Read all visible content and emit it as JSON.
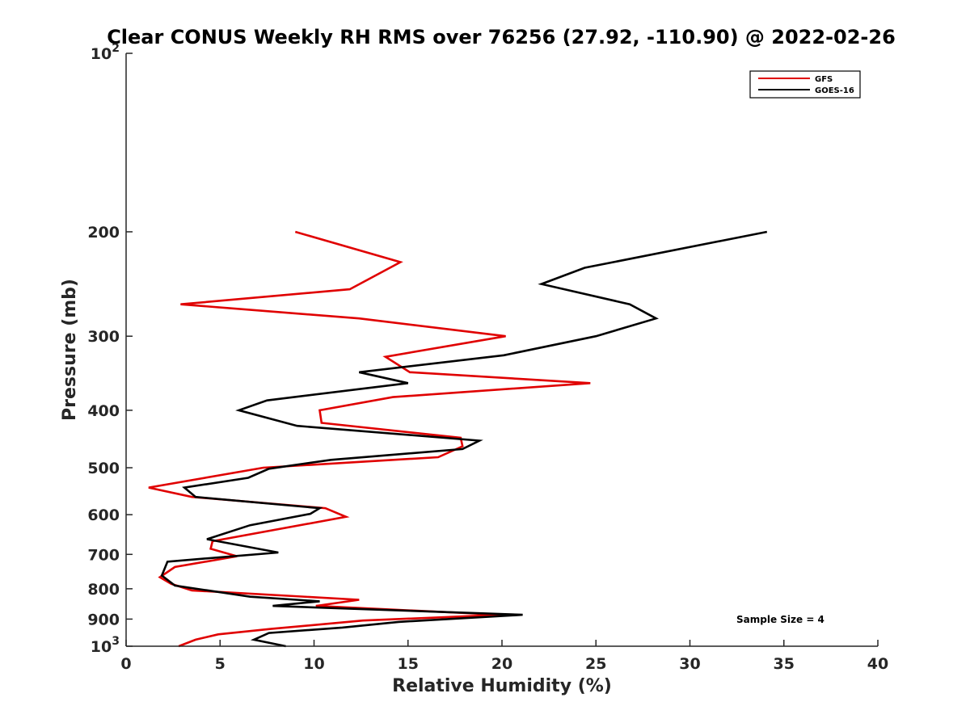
{
  "chart_data": {
    "type": "line",
    "title": "Clear CONUS Weekly RH RMS over 76256 (27.92, -110.90) @ 2022-02-26",
    "xlabel": "Relative Humidity (%)",
    "ylabel": "Pressure (mb)",
    "xlim": [
      0,
      40
    ],
    "ylim": [
      100,
      1000
    ],
    "yscale": "log",
    "yreversed": true,
    "xticks": [
      0,
      5,
      10,
      15,
      20,
      25,
      30,
      35,
      40
    ],
    "xtick_labels": [
      "0",
      "5",
      "10",
      "15",
      "20",
      "25",
      "30",
      "35",
      "40"
    ],
    "yticks": [
      {
        "value": 100,
        "base": "10",
        "exp": "2"
      },
      {
        "value": 200,
        "label": "200"
      },
      {
        "value": 300,
        "label": "300"
      },
      {
        "value": 400,
        "label": "400"
      },
      {
        "value": 500,
        "label": "500"
      },
      {
        "value": 600,
        "label": "600"
      },
      {
        "value": 700,
        "label": "700"
      },
      {
        "value": 800,
        "label": "800"
      },
      {
        "value": 900,
        "label": "900"
      },
      {
        "value": 1000,
        "base": "10",
        "exp": "3"
      }
    ],
    "grid": false,
    "legend_position": "top-right",
    "annotation": "Sample Size = 4",
    "series": [
      {
        "name": "GFS",
        "color": "#e00000",
        "points": [
          [
            9.0,
            200
          ],
          [
            14.6,
            225
          ],
          [
            11.9,
            250
          ],
          [
            2.9,
            265
          ],
          [
            12.4,
            280
          ],
          [
            20.2,
            300
          ],
          [
            13.8,
            325
          ],
          [
            15.1,
            345
          ],
          [
            24.7,
            360
          ],
          [
            14.2,
            380
          ],
          [
            10.3,
            400
          ],
          [
            10.4,
            420
          ],
          [
            17.8,
            445
          ],
          [
            17.9,
            460
          ],
          [
            16.6,
            480
          ],
          [
            7.3,
            500
          ],
          [
            1.2,
            540
          ],
          [
            3.5,
            560
          ],
          [
            10.6,
            585
          ],
          [
            11.7,
            605
          ],
          [
            4.6,
            665
          ],
          [
            4.5,
            685
          ],
          [
            5.9,
            705
          ],
          [
            2.6,
            735
          ],
          [
            1.8,
            765
          ],
          [
            2.4,
            785
          ],
          [
            3.5,
            805
          ],
          [
            12.4,
            835
          ],
          [
            10.1,
            855
          ],
          [
            20.0,
            885
          ],
          [
            12.6,
            905
          ],
          [
            7.7,
            935
          ],
          [
            4.9,
            955
          ],
          [
            3.7,
            975
          ],
          [
            2.8,
            1000
          ]
        ]
      },
      {
        "name": "GOES-16",
        "color": "#000000",
        "points": [
          [
            34.1,
            200
          ],
          [
            24.4,
            230
          ],
          [
            22.1,
            245
          ],
          [
            26.8,
            265
          ],
          [
            28.2,
            280
          ],
          [
            25.0,
            300
          ],
          [
            20.1,
            323
          ],
          [
            12.4,
            345
          ],
          [
            15.0,
            360
          ],
          [
            7.5,
            385
          ],
          [
            6.0,
            400
          ],
          [
            9.1,
            425
          ],
          [
            18.8,
            450
          ],
          [
            17.9,
            465
          ],
          [
            10.9,
            485
          ],
          [
            7.6,
            502
          ],
          [
            6.5,
            520
          ],
          [
            3.1,
            540
          ],
          [
            3.7,
            560
          ],
          [
            10.3,
            585
          ],
          [
            9.8,
            598
          ],
          [
            6.6,
            625
          ],
          [
            4.3,
            660
          ],
          [
            8.1,
            695
          ],
          [
            2.2,
            720
          ],
          [
            1.9,
            760
          ],
          [
            2.6,
            790
          ],
          [
            6.6,
            825
          ],
          [
            10.3,
            840
          ],
          [
            7.8,
            855
          ],
          [
            21.1,
            885
          ],
          [
            14.5,
            910
          ],
          [
            11.5,
            930
          ],
          [
            7.6,
            950
          ],
          [
            6.8,
            975
          ],
          [
            8.5,
            1000
          ]
        ]
      }
    ]
  }
}
